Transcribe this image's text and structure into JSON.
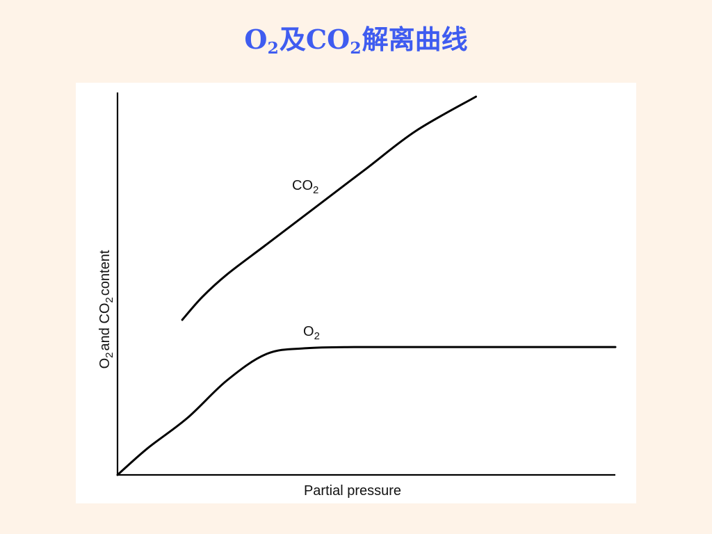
{
  "title": {
    "o2": "O",
    "o2_sub": "2",
    "conj": "及",
    "co2": "CO",
    "co2_sub": "2",
    "suffix": "解离曲线"
  },
  "colors": {
    "background": "#FEF3E8",
    "title": "#3F5CF0",
    "panel": "#FFFFFF",
    "ink": "#000000"
  },
  "chart_data": {
    "type": "line",
    "title": "",
    "xlabel": "Partial pressure",
    "ylabel_parts": [
      "O",
      "2",
      "and CO",
      "2",
      "content"
    ],
    "grid": false,
    "xlim": [
      0,
      100
    ],
    "ylim": [
      0,
      100
    ],
    "series": [
      {
        "name": "CO2",
        "label_main": "CO",
        "label_sub": "2",
        "x": [
          13,
          17,
          22,
          30,
          40,
          50,
          60,
          72
        ],
        "y": [
          41,
          47,
          53,
          61,
          71,
          81,
          91,
          100
        ]
      },
      {
        "name": "O2",
        "label_main": "O",
        "label_sub": "2",
        "x": [
          0,
          6,
          14,
          22,
          30,
          38,
          48,
          60,
          75,
          100
        ],
        "y": [
          0,
          7,
          15,
          25,
          32,
          33.5,
          33.8,
          33.8,
          33.8,
          33.8
        ]
      }
    ]
  }
}
